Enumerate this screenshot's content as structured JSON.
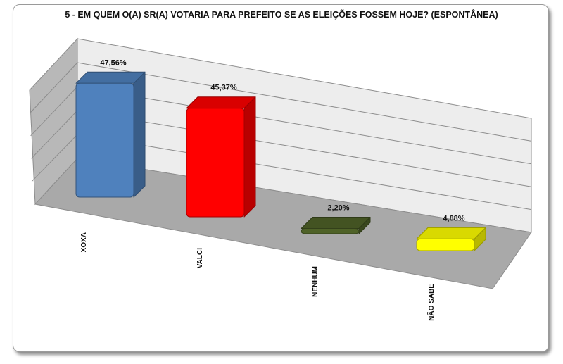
{
  "chart_data": {
    "type": "bar",
    "title": "5 - EM QUEM O(A) SR(A) VOTARIA PARA PREFEITO SE AS ELEIÇÕES FOSSEM HOJE? (ESPONTÂNEA)",
    "categories": [
      "XOXA",
      "VALCI",
      "NENHUM",
      "NÃO SABE"
    ],
    "values": [
      47.56,
      45.37,
      2.2,
      4.88
    ],
    "data_labels": [
      "47,56%",
      "45,37%",
      "2,20%",
      "4,88%"
    ],
    "colors": [
      "#4f81bd",
      "#ff0000",
      "#4f6228",
      "#ffff00"
    ],
    "xlabel": "",
    "ylabel": "",
    "ylim": [
      0,
      50
    ],
    "grid": true,
    "legend": "none"
  }
}
